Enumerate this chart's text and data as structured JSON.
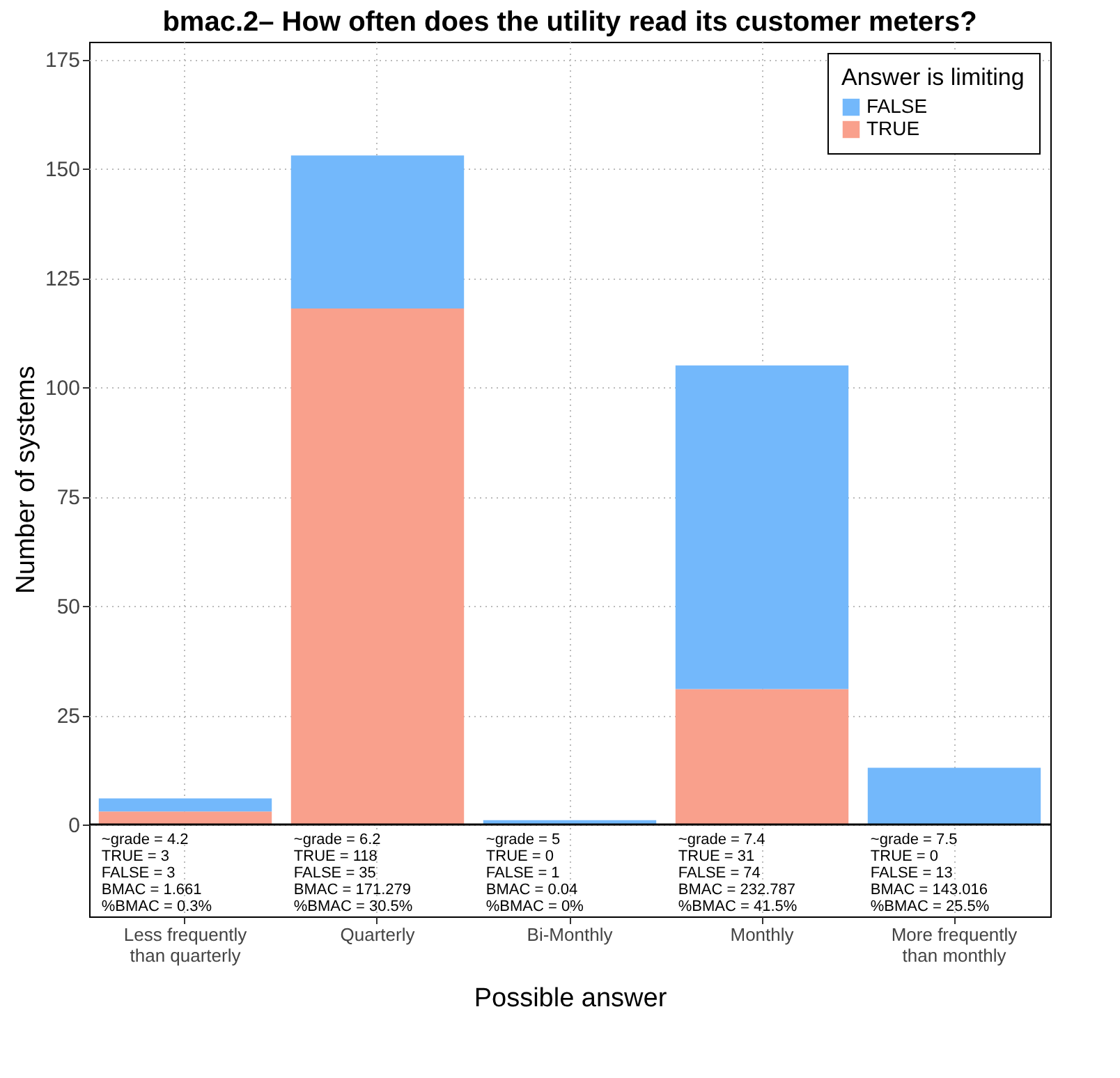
{
  "chart_data": {
    "type": "bar",
    "title": "bmac.2– How often does the utility read its customer meters?",
    "xlabel": "Possible answer",
    "ylabel": "Number of systems",
    "legend_title": "Answer is limiting",
    "categories": [
      "Less frequently than quarterly",
      "Quarterly",
      "Bi-Monthly",
      "Monthly",
      "More frequently than monthly"
    ],
    "series": [
      {
        "name": "TRUE",
        "color": "#f9a08c",
        "values": [
          3,
          118,
          0,
          31,
          0
        ]
      },
      {
        "name": "FALSE",
        "color": "#73b8fb",
        "values": [
          3,
          35,
          1,
          74,
          13
        ]
      }
    ],
    "stacked": true,
    "ylim": [
      -21,
      179
    ],
    "yticks": [
      0,
      25,
      50,
      75,
      100,
      125,
      150,
      175
    ],
    "grid": true,
    "legend": "top right",
    "ref_lines": [
      {
        "axis": "y",
        "value": 0,
        "color": "#000000"
      }
    ],
    "annotations": [
      "~grade = 4.2\nTRUE = 3\nFALSE = 3\nBMAC = 1.661\n%BMAC = 0.3%",
      "~grade = 6.2\nTRUE = 118\nFALSE = 35\nBMAC = 171.279\n%BMAC = 30.5%",
      "~grade = 5\nTRUE = 0\nFALSE = 1\nBMAC = 0.04\n%BMAC = 0%",
      "~grade = 7.4\nTRUE = 31\nFALSE = 74\nBMAC = 232.787\n%BMAC = 41.5%",
      "~grade = 7.5\nTRUE = 0\nFALSE = 13\nBMAC = 143.016\n%BMAC = 25.5%"
    ]
  }
}
